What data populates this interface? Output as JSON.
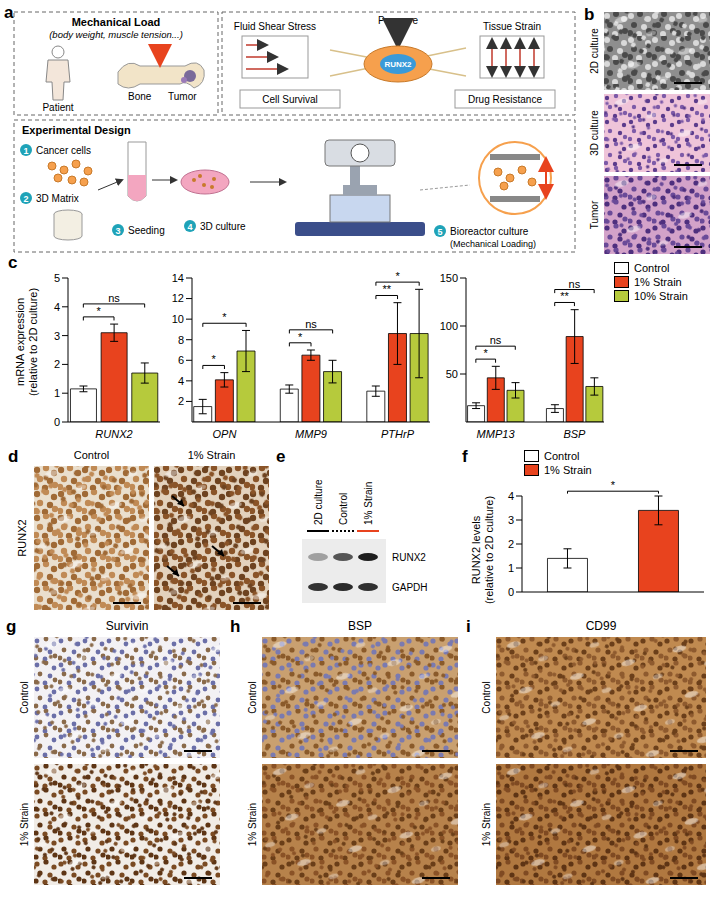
{
  "panels": {
    "a": {
      "label": "a",
      "mechanical_load": {
        "title": "Mechanical Load",
        "subtitle": "(body weight, muscle tension...)",
        "patient": "Patient",
        "bone": "Bone",
        "tumor": "Tumor"
      },
      "mechanics": {
        "pressure": "Pressure",
        "shear": "Fluid Shear Stress",
        "strain": "Tissue Strain",
        "marker": "RUNX2",
        "outcomes": [
          "Cell Survival",
          "Drug Resistance"
        ]
      },
      "design": {
        "title": "Experimental Design",
        "steps": [
          {
            "number": 1,
            "text": "Cancer cells"
          },
          {
            "number": 2,
            "text": "3D Matrix"
          },
          {
            "number": 3,
            "text": "Seeding"
          },
          {
            "number": 4,
            "text": "3D culture"
          },
          {
            "number": 5,
            "text": "Bioreactor culture",
            "note": "(Mechanical Loading)"
          }
        ]
      }
    },
    "b": {
      "label": "b",
      "rows": [
        "2D culture",
        "3D culture",
        "Tumor"
      ]
    },
    "d": {
      "label": "d",
      "stain": "RUNX2",
      "columns": [
        "Control",
        "1% Strain"
      ]
    },
    "e": {
      "label": "e",
      "lanes": [
        "2D culture",
        "Control",
        "1% Strain"
      ],
      "bands": [
        "RUNX2",
        "GAPDH"
      ]
    },
    "g": {
      "label": "g",
      "title": "Survivin",
      "rows": [
        "Control",
        "1% Strain"
      ]
    },
    "h": {
      "label": "h",
      "title": "BSP",
      "rows": [
        "Control",
        "1% Strain"
      ]
    },
    "i": {
      "label": "i",
      "title": "CD99",
      "rows": [
        "Control",
        "1% Strain"
      ]
    }
  },
  "chart_data": [
    {
      "label": "c",
      "type": "bar",
      "ylabel": "mRNA expression\n(relative to 2D culture)",
      "legend": "top-right",
      "series": [
        {
          "name": "Control",
          "color": "#ffffff"
        },
        {
          "name": "1% Strain",
          "color": "#e8431e"
        },
        {
          "name": "10% Strain",
          "color": "#b6ca3c"
        }
      ],
      "subplots": [
        {
          "categories": [
            "RUNX2"
          ],
          "ylim": [
            0,
            5
          ],
          "yticks": [
            0,
            1,
            2,
            3,
            4,
            5
          ],
          "values": [
            [
              1.15
            ],
            [
              3.1
            ],
            [
              1.7
            ]
          ],
          "errors": [
            [
              0.1
            ],
            [
              0.3
            ],
            [
              0.35
            ]
          ],
          "significance": [
            {
              "category": "RUNX2",
              "pair": [
                "Control",
                "1% Strain"
              ],
              "label": "*"
            },
            {
              "category": "RUNX2",
              "pair": [
                "Control",
                "10% Strain"
              ],
              "label": "ns"
            }
          ]
        },
        {
          "categories": [
            "OPN",
            "MMP9",
            "PTHrP"
          ],
          "ylim": [
            0,
            14
          ],
          "yticks": [
            2,
            4,
            6,
            8,
            10,
            12,
            14
          ],
          "values": [
            [
              1.5,
              3.2,
              3.0
            ],
            [
              4.1,
              6.5,
              8.6
            ],
            [
              6.9,
              4.9,
              8.6
            ]
          ],
          "errors": [
            [
              0.7,
              0.4,
              0.5
            ],
            [
              0.7,
              0.5,
              3.0
            ],
            [
              2.0,
              1.1,
              4.3
            ]
          ],
          "significance": [
            {
              "category": "OPN",
              "pair": [
                "Control",
                "1% Strain"
              ],
              "label": "*"
            },
            {
              "category": "OPN",
              "pair": [
                "Control",
                "10% Strain"
              ],
              "label": "*"
            },
            {
              "category": "MMP9",
              "pair": [
                "Control",
                "1% Strain"
              ],
              "label": "*"
            },
            {
              "category": "MMP9",
              "pair": [
                "Control",
                "10% Strain"
              ],
              "label": "ns"
            },
            {
              "category": "PTHrP",
              "pair": [
                "Control",
                "1% Strain"
              ],
              "label": "**"
            },
            {
              "category": "PTHrP",
              "pair": [
                "Control",
                "10% Strain"
              ],
              "label": "*"
            }
          ]
        },
        {
          "categories": [
            "MMP13",
            "BSP"
          ],
          "ylim": [
            0,
            150
          ],
          "yticks": [
            50,
            100,
            150
          ],
          "values": [
            [
              17,
              14
            ],
            [
              46,
              89
            ],
            [
              33,
              37
            ]
          ],
          "errors": [
            [
              3,
              4
            ],
            [
              12,
              28
            ],
            [
              8,
              9
            ]
          ],
          "significance": [
            {
              "category": "MMP13",
              "pair": [
                "Control",
                "1% Strain"
              ],
              "label": "*"
            },
            {
              "category": "MMP13",
              "pair": [
                "Control",
                "10% Strain"
              ],
              "label": "ns"
            },
            {
              "category": "BSP",
              "pair": [
                "Control",
                "1% Strain"
              ],
              "label": "**"
            },
            {
              "category": "BSP",
              "pair": [
                "Control",
                "10% Strain"
              ],
              "label": "ns"
            }
          ]
        }
      ]
    },
    {
      "label": "f",
      "type": "bar",
      "ylabel": "RUNX2 levels\n(relative to 2D culture)",
      "legend": "top-left",
      "categories": [
        null
      ],
      "ylim": [
        0,
        4
      ],
      "yticks": [
        0,
        1,
        2,
        3,
        4
      ],
      "series": [
        {
          "name": "Control",
          "color": "#ffffff",
          "values": [
            1.4
          ],
          "errors": [
            0.4
          ]
        },
        {
          "name": "1% Strain",
          "color": "#e8431e",
          "values": [
            3.4
          ],
          "errors": [
            0.6
          ]
        }
      ],
      "significance": [
        {
          "category": null,
          "pair": [
            "Control",
            "1% Strain"
          ],
          "label": "*"
        }
      ]
    }
  ]
}
